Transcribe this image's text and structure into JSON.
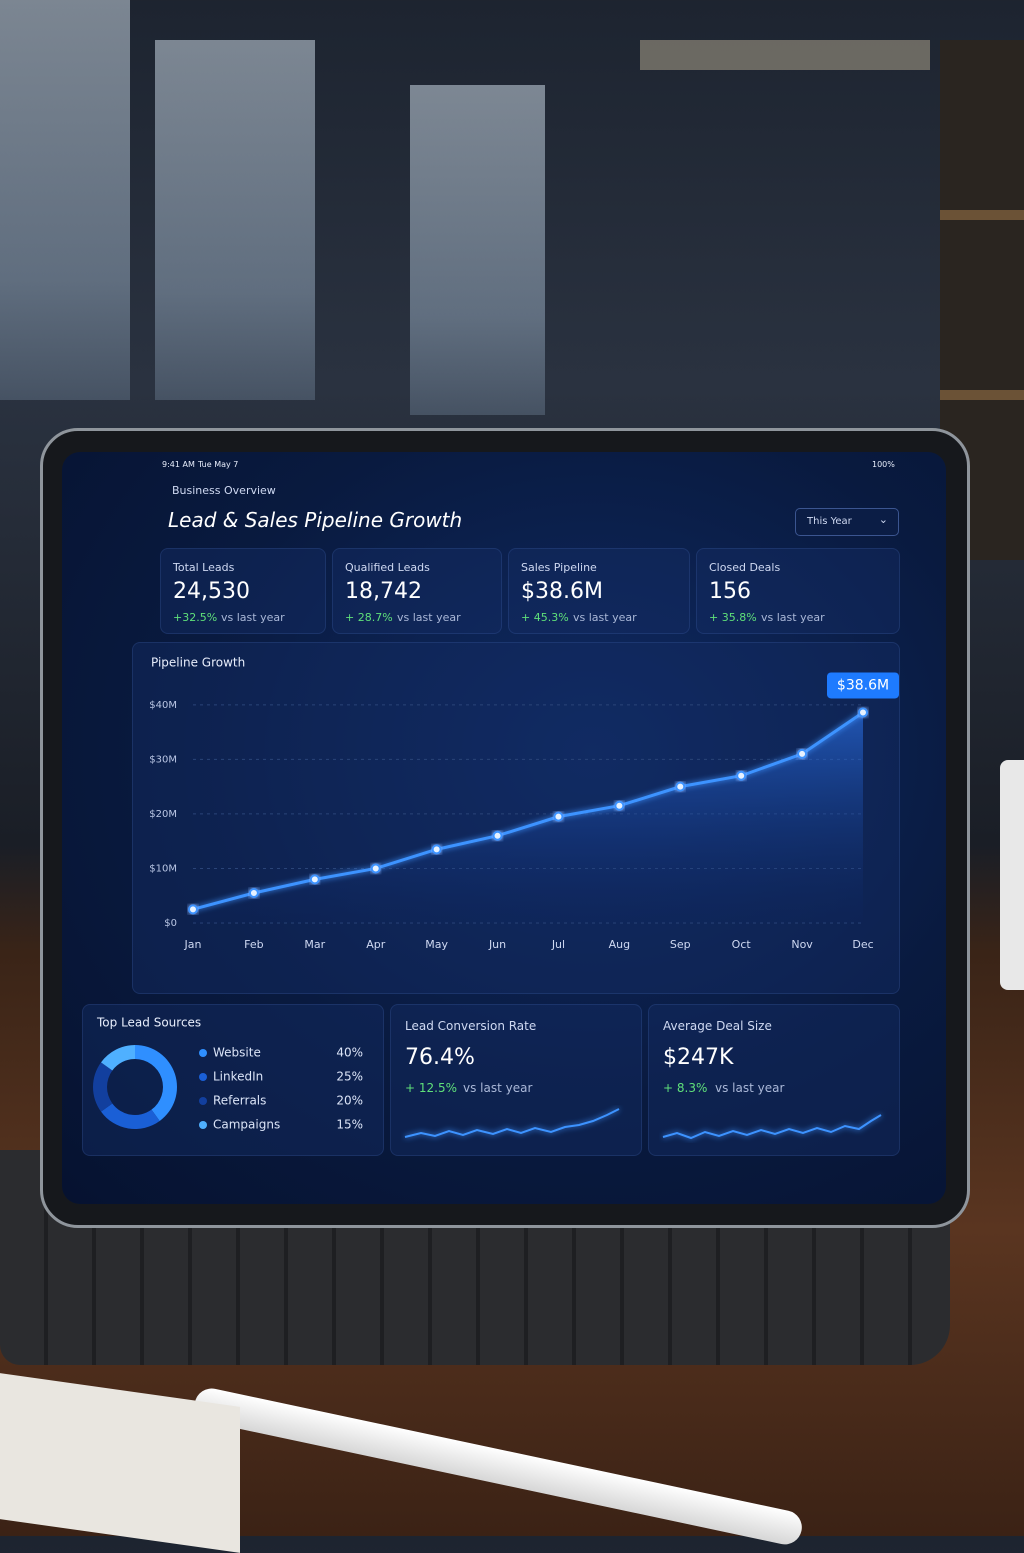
{
  "status_bar": {
    "time": "9:41 AM",
    "date": "Tue May 7",
    "battery": "100%"
  },
  "header": {
    "eyebrow": "Business Overview",
    "title": "Lead & Sales Pipeline Growth",
    "period": "This Year"
  },
  "kpis": [
    {
      "label": "Total Leads",
      "value": "24,530",
      "change": "+32.5%",
      "note": "vs last year"
    },
    {
      "label": "Qualified Leads",
      "value": "18,742",
      "change": "+ 28.7%",
      "note": "vs last year"
    },
    {
      "label": "Sales Pipeline",
      "value": "$38.6M",
      "change": "+ 45.3%",
      "note": "vs last year"
    },
    {
      "label": "Closed Deals",
      "value": "156",
      "change": "+ 35.8%",
      "note": "vs last year"
    }
  ],
  "panels": {
    "conversion": {
      "label": "Lead Conversion Rate",
      "value": "76.4%",
      "change": "+ 12.5%",
      "note": "vs last year"
    },
    "deal_size": {
      "label": "Average Deal Size",
      "value": "$247K",
      "change": "+ 8.3%",
      "note": "vs last year"
    }
  },
  "chart_data": [
    {
      "type": "line",
      "title": "Pipeline Growth",
      "categories": [
        "Jan",
        "Feb",
        "Mar",
        "Apr",
        "May",
        "Jun",
        "Jul",
        "Aug",
        "Sep",
        "Oct",
        "Nov",
        "Dec"
      ],
      "values": [
        2.5,
        5.5,
        8,
        10,
        13.5,
        16,
        19.5,
        21.5,
        25,
        27,
        31,
        38.6
      ],
      "value_labels": [
        null,
        null,
        null,
        null,
        null,
        null,
        null,
        null,
        null,
        null,
        null,
        "$38.6M"
      ],
      "color": "#3d93ff",
      "ylim": [
        0,
        44
      ],
      "yticks": [
        {
          "value": 0,
          "label": "$0"
        },
        {
          "value": 10,
          "label": "$10M"
        },
        {
          "value": 20,
          "label": "$20M"
        },
        {
          "value": 30,
          "label": "$30M"
        },
        {
          "value": 40,
          "label": "$40M"
        }
      ],
      "grid": true
    },
    {
      "type": "pie",
      "title": "Top Lead Sources",
      "categories": [
        "Website",
        "LinkedIn",
        "Referrals",
        "Campaigns"
      ],
      "values": [
        40,
        25,
        20,
        15
      ],
      "value_labels": [
        "40%",
        "25%",
        "20%",
        "15%"
      ],
      "colors": [
        "#2f8fff",
        "#1a5fd6",
        "#123f9e",
        "#4fb0ff"
      ]
    }
  ]
}
